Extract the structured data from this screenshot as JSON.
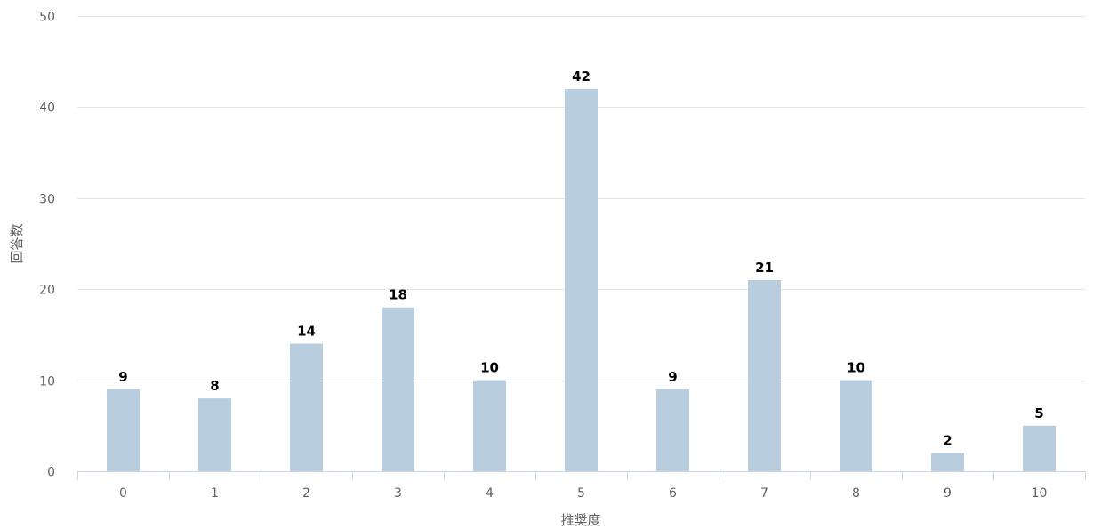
{
  "chart_data": {
    "type": "bar",
    "title": "",
    "xlabel": "推奨度",
    "ylabel": "回答数",
    "categories": [
      "0",
      "1",
      "2",
      "3",
      "4",
      "5",
      "6",
      "7",
      "8",
      "9",
      "10"
    ],
    "values": [
      9,
      8,
      14,
      18,
      10,
      42,
      9,
      21,
      10,
      2,
      5
    ],
    "ylim": [
      0,
      50
    ],
    "yticks": [
      0,
      10,
      20,
      30,
      40,
      50
    ],
    "grid": true,
    "legend": "none",
    "data_labels": true,
    "bar_color": "#b8cddd"
  }
}
